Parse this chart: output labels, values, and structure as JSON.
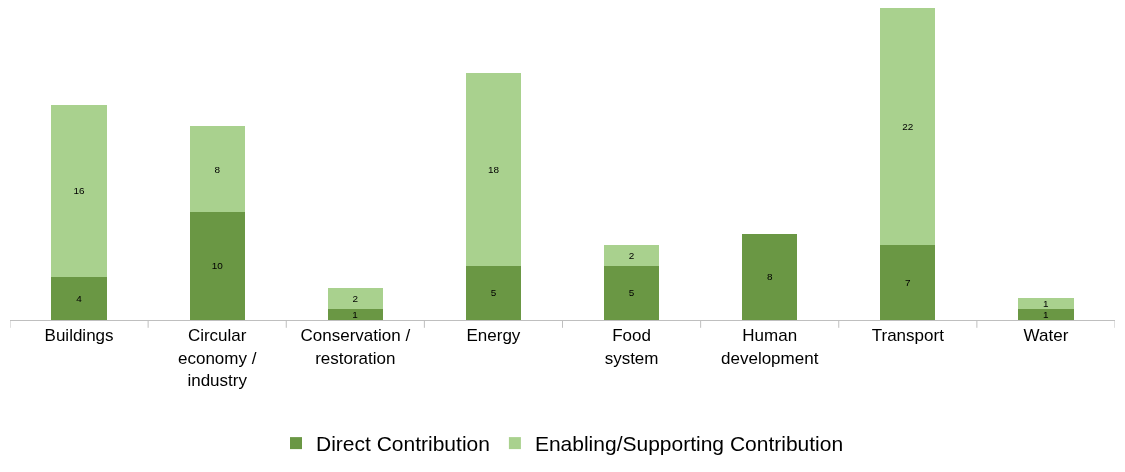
{
  "chart_data": {
    "type": "bar",
    "stacked": true,
    "data_labels": true,
    "legend": "bottom",
    "tick_labels": "x",
    "categories": [
      "Buildings",
      "Circular\neconomy /\nindustry",
      "Conservation /\nrestoration",
      "Energy",
      "Food\nsystem",
      "Human\ndevelopment",
      "Transport",
      "Water"
    ],
    "series": [
      {
        "name": "Direct Contribution",
        "color": "#6a9744",
        "values": [
          4,
          10,
          1,
          5,
          5,
          8,
          7,
          1
        ]
      },
      {
        "name": "Enabling/Supporting Contribution",
        "color": "#a9d18e",
        "values": [
          16,
          8,
          2,
          18,
          2,
          null,
          22,
          1
        ]
      }
    ]
  }
}
